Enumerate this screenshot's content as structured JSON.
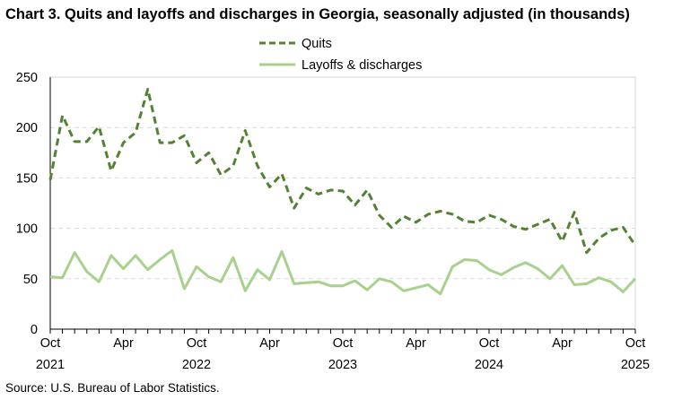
{
  "chart_data": {
    "type": "line",
    "title": "Chart 3. Quits and layoffs and discharges in Georgia, seasonally adjusted (in thousands)",
    "source": "Source: U.S. Bureau of Labor Statistics.",
    "x_start": "2021-10",
    "x_end": "2025-10",
    "x_tick_labels": [
      {
        "month": "Oct",
        "year": "2021"
      },
      {
        "month": "Apr",
        "year": ""
      },
      {
        "month": "Oct",
        "year": "2022"
      },
      {
        "month": "Apr",
        "year": ""
      },
      {
        "month": "Oct",
        "year": "2023"
      },
      {
        "month": "Apr",
        "year": ""
      },
      {
        "month": "Oct",
        "year": "2024"
      },
      {
        "month": "Apr",
        "year": ""
      },
      {
        "month": "Oct",
        "year": "2025"
      }
    ],
    "ylim": [
      0,
      250
    ],
    "y_ticks": [
      0,
      50,
      100,
      150,
      200,
      250
    ],
    "grid": "horizontal dashed",
    "legend_placement": "top-center",
    "series": [
      {
        "name": "Quits",
        "color": "#548235",
        "style": "dashed",
        "values": [
          148,
          212,
          186,
          186,
          201,
          157,
          185,
          195,
          238,
          185,
          185,
          192,
          165,
          175,
          153,
          162,
          197,
          162,
          141,
          154,
          120,
          140,
          134,
          138,
          137,
          123,
          138,
          113,
          101,
          112,
          106,
          114,
          117,
          114,
          107,
          106,
          113,
          109,
          102,
          99,
          104,
          109,
          87,
          116,
          76,
          90,
          98,
          101,
          83
        ]
      },
      {
        "name": "Layoffs & discharges",
        "color": "#a9d18e",
        "style": "solid",
        "values": [
          52,
          51,
          76,
          57,
          47,
          73,
          60,
          73,
          59,
          69,
          78,
          40,
          62,
          52,
          47,
          71,
          38,
          59,
          49,
          77,
          45,
          46,
          47,
          43,
          43,
          48,
          39,
          50,
          47,
          38,
          41,
          44,
          35,
          62,
          69,
          68,
          59,
          54,
          61,
          66,
          60,
          50,
          63,
          44,
          45,
          51,
          47,
          37,
          50
        ]
      }
    ]
  }
}
